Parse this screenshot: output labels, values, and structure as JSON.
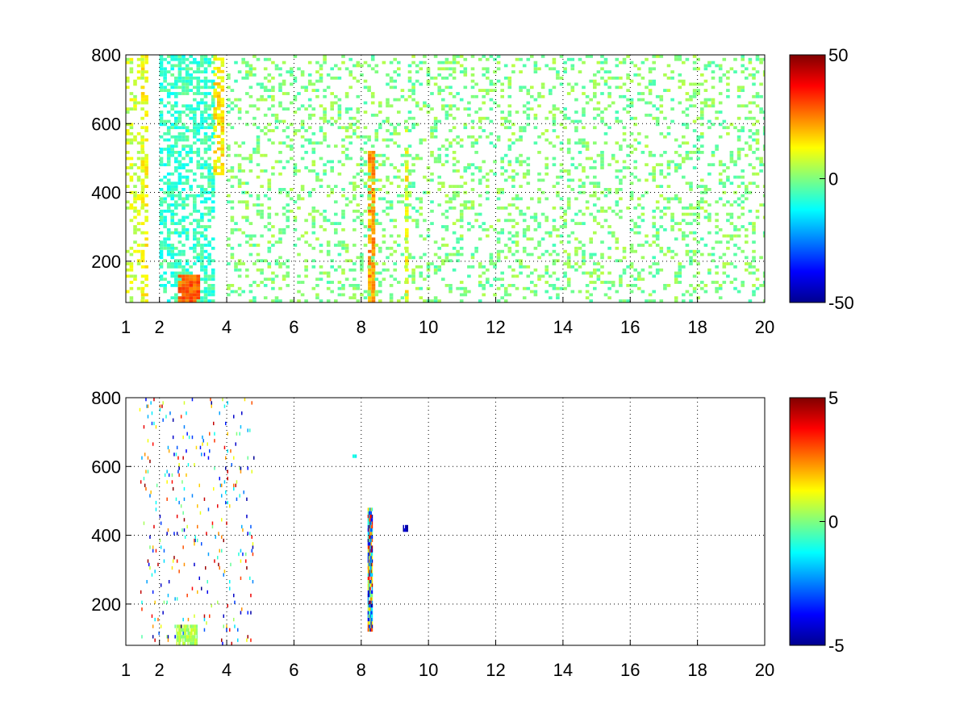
{
  "chart_data": [
    {
      "type": "heatmap",
      "title": "",
      "xlabel": "",
      "ylabel": "",
      "xlim": [
        1,
        20
      ],
      "ylim": [
        80,
        800
      ],
      "xticks": [
        "1",
        "2",
        "4",
        "6",
        "8",
        "10",
        "12",
        "14",
        "16",
        "18",
        "20"
      ],
      "yticks": [
        "200",
        "400",
        "600",
        "800"
      ],
      "grid": true,
      "colormap": "jet",
      "colorbar": {
        "min": -50,
        "max": 50,
        "ticks": [
          "50",
          "0",
          "-50"
        ]
      },
      "features": [
        {
          "x_range": [
            1.0,
            1.45
          ],
          "y_range": [
            80,
            800
          ],
          "value": 8,
          "density": 0.35
        },
        {
          "x_range": [
            1.45,
            1.6
          ],
          "y_range": [
            80,
            800
          ],
          "value": 12,
          "density": 0.45
        },
        {
          "x_range": [
            2.0,
            3.6
          ],
          "y_range": [
            80,
            800
          ],
          "value": -7,
          "density": 0.55
        },
        {
          "x_range": [
            3.6,
            3.9
          ],
          "y_range": [
            450,
            800
          ],
          "value": 14,
          "density": 0.6
        },
        {
          "x_range": [
            2.55,
            3.2
          ],
          "y_range": [
            80,
            160
          ],
          "value": 28,
          "density": 0.9
        },
        {
          "x_range": [
            8.2,
            8.35
          ],
          "y_range": [
            80,
            520
          ],
          "value": 22,
          "density": 0.9
        },
        {
          "x_range": [
            9.3,
            9.4
          ],
          "y_range": [
            80,
            620
          ],
          "value": 12,
          "density": 0.7
        },
        {
          "x_range": [
            4.0,
            20.0
          ],
          "y_range": [
            80,
            800
          ],
          "value": 0,
          "density": 0.22
        }
      ]
    },
    {
      "type": "heatmap",
      "title": "",
      "xlabel": "",
      "ylabel": "",
      "xlim": [
        1,
        20
      ],
      "ylim": [
        80,
        800
      ],
      "xticks": [
        "1",
        "2",
        "4",
        "6",
        "8",
        "10",
        "12",
        "14",
        "16",
        "18",
        "20"
      ],
      "yticks": [
        "200",
        "400",
        "600",
        "800"
      ],
      "grid": true,
      "colormap": "jet",
      "colorbar": {
        "min": -5,
        "max": 5,
        "ticks": [
          "5",
          "0",
          "-5"
        ]
      },
      "features": [
        {
          "x": 8.25,
          "y_range": [
            120,
            480
          ],
          "value": "mixed"
        },
        {
          "x": 9.3,
          "y_range": [
            410,
            425
          ],
          "value": -4.5
        },
        {
          "x": 7.8,
          "y_range": [
            625,
            635
          ],
          "value": -1
        },
        {
          "x_range": [
            2.5,
            3.1
          ],
          "y_range": [
            80,
            140
          ],
          "value": 0.5
        },
        {
          "x_range": [
            1.4,
            4.8
          ],
          "y_range": [
            80,
            800
          ],
          "value": "sparse-mixed"
        }
      ]
    }
  ]
}
